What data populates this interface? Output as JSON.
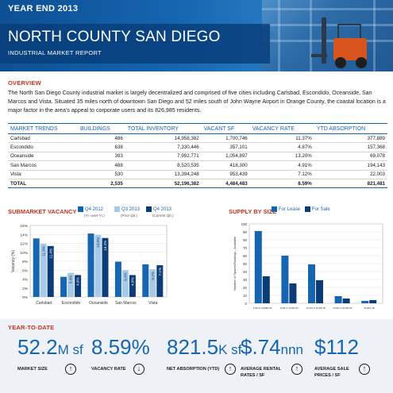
{
  "header": {
    "year_end": "YEAR END 2013",
    "title": "NORTH COUNTY SAN DIEGO",
    "subtitle": "INDUSTRIAL MARKET REPORT"
  },
  "overview": {
    "heading": "OVERVIEW",
    "text": "The North San Diego County industrial market is largely decentralized and comprised of five cities including Carlsbad, Escondido, Oceanside, San Marcos and Vista. Situated 35 miles north of downtown San Diego and 52 miles south of John Wayne Airport in Orange County, the coastal location is a major factor in the area's appeal to corporate users and its 826,985 residents."
  },
  "market_trends": {
    "headers": [
      "MARKET TRENDS",
      "BUILDINGS",
      "TOTAL INVENTORY",
      "VACANT SF",
      "VACANCY RATE",
      "YTD ABSORPTION"
    ],
    "rows": [
      [
        "Carlsbad",
        "486",
        "14,958,382",
        "1,700,746",
        "11.37%",
        "377,889"
      ],
      [
        "Escondido",
        "638",
        "7,330,446",
        "357,101",
        "4.87%",
        "157,368"
      ],
      [
        "Oceanside",
        "393",
        "7,992,771",
        "1,054,897",
        "13.20%",
        "69,078"
      ],
      [
        "San Marcos",
        "488",
        "8,520,535",
        "418,300",
        "4.91%",
        "194,143"
      ],
      [
        "Vista",
        "530",
        "13,394,248",
        "953,439",
        "7.12%",
        "22,003"
      ]
    ],
    "total": [
      "TOTAL",
      "2,535",
      "52,196,382",
      "4,484,483",
      "8.59%",
      "821,481"
    ]
  },
  "chart_data": [
    {
      "type": "bar",
      "title": "SUBMARKET VACANCY",
      "ylabel": "Vacancy (%)",
      "xlabel": "",
      "ylim": [
        0,
        16
      ],
      "yticks": [
        "0%",
        "2%",
        "4%",
        "6%",
        "8%",
        "10%",
        "12%",
        "14%",
        "16%"
      ],
      "categories": [
        "Carlsbad",
        "Escondido",
        "Oceanside",
        "San Marcos",
        "Vista"
      ],
      "series": [
        {
          "name": "Q4 2012",
          "sub": "(Yr.-over-Yr.)",
          "values": [
            13.1,
            4.5,
            14.2,
            7.9,
            7.3
          ]
        },
        {
          "name": "Q3 2013",
          "sub": "(Prior Qtr.)",
          "values": [
            11.9,
            5.4,
            13.9,
            6.0,
            6.2
          ]
        },
        {
          "name": "Q4 2013",
          "sub": "(Current Qtr.)",
          "values": [
            11.4,
            4.9,
            13.2,
            4.9,
            7.1
          ]
        }
      ],
      "data_labels": [
        [
          "",
          "11.9%",
          "11.4%"
        ],
        [
          "",
          "5.4%",
          "4.9%"
        ],
        [
          "",
          "13.9%",
          "13.2%"
        ],
        [
          "",
          "6.0%",
          "4.9%"
        ],
        [
          "",
          "6.2%",
          "7.1%"
        ]
      ],
      "legend": "top",
      "grid": true,
      "colors": [
        "#1565b0",
        "#a9c9e8",
        "#0c3c78"
      ]
    },
    {
      "type": "bar",
      "title": "SUPPLY BY SIZE",
      "ylabel": "Number of Spaces/Buildings - Available",
      "xlabel": "",
      "ylim": [
        0,
        100
      ],
      "yticks": [
        "0",
        "10",
        "20",
        "30",
        "40",
        "50",
        "60",
        "70",
        "80",
        "90",
        "100"
      ],
      "categories": [
        "5,000 & UNDER SF",
        "5,001 to 10,000 SF",
        "10,001 to 20,000 SF",
        "20,001 to 50,000 SF",
        "50,000+ SF"
      ],
      "series": [
        {
          "name": "For Lease",
          "values": [
            91,
            60,
            49,
            9,
            3
          ]
        },
        {
          "name": "For Sale",
          "values": [
            34,
            25,
            29,
            6,
            4
          ]
        }
      ],
      "legend": "top",
      "grid": true,
      "colors": [
        "#1565b0",
        "#0c3c78"
      ]
    }
  ],
  "ytd": {
    "heading": "YEAR-TO-DATE",
    "items": [
      {
        "value": "52.2",
        "unit": "M sf",
        "label": "MARKET SIZE",
        "arrow": "↑"
      },
      {
        "value": "8.59%",
        "unit": "",
        "label": "VACANCY RATE",
        "arrow": "↓"
      },
      {
        "value": "821.5",
        "unit": "K sf",
        "label": "NET ABSORPTION (YTD)",
        "arrow": "↑"
      },
      {
        "value": "$.74",
        "unit": "nnn",
        "label": "AVERAGE RENTAL RATES / SF",
        "arrow": "↑"
      },
      {
        "value": "$112",
        "unit": "",
        "label": "AVERAGE SALE PRICES / SF",
        "arrow": "↑"
      }
    ]
  },
  "colors": {
    "brand_blue": "#1565b0",
    "light_blue": "#a9c9e8",
    "dark_blue": "#0c3c78",
    "accent_red": "#c8321e"
  }
}
